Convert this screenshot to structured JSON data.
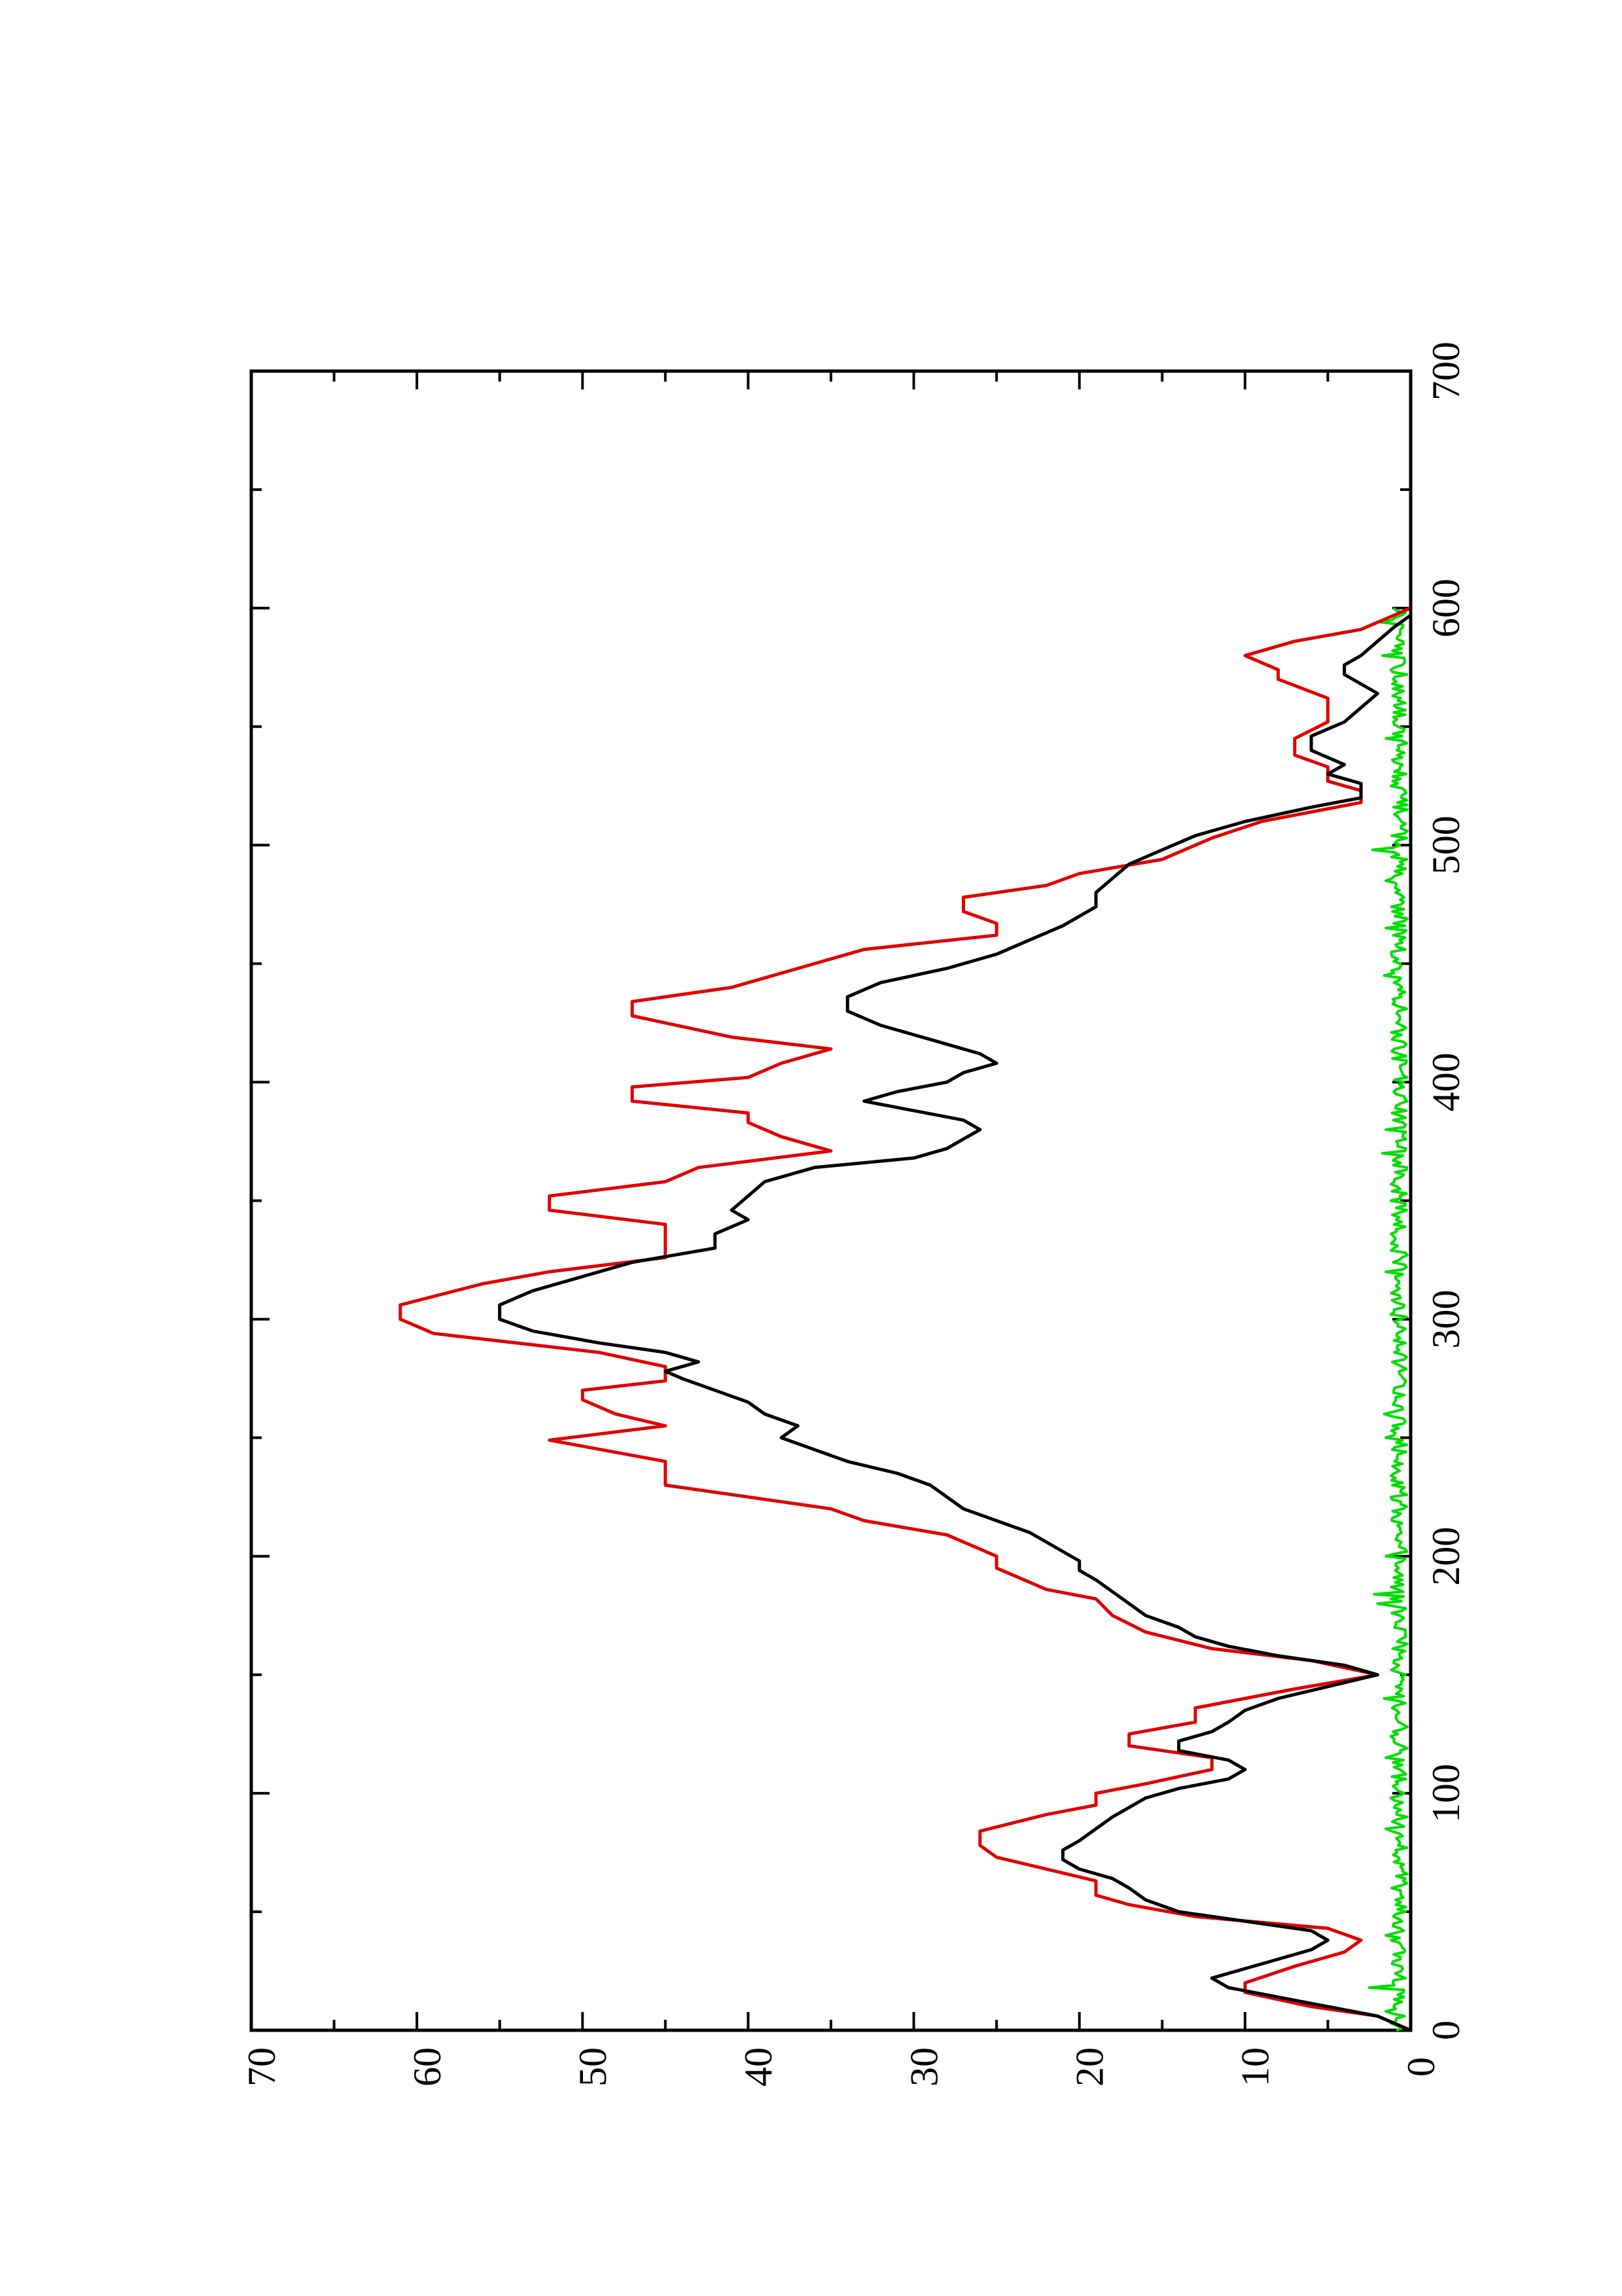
{
  "chart_data": {
    "type": "line",
    "title": "",
    "xlabel": "",
    "ylabel": "",
    "orientation": "rotated 90 degrees counter-clockwise (portrait page)",
    "xlim": [
      0,
      700
    ],
    "ylim": [
      0,
      70
    ],
    "x_ticks": [
      0,
      100,
      200,
      300,
      400,
      500,
      600,
      700
    ],
    "x_minor_ticks": [
      50,
      150,
      250,
      350,
      450,
      550,
      650
    ],
    "y_ticks": [
      0,
      10,
      20,
      30,
      40,
      50,
      60,
      70
    ],
    "y_minor_ticks": [
      5,
      15,
      25,
      35,
      45,
      55,
      65
    ],
    "grid": false,
    "legend": "none",
    "series": [
      {
        "color": "#e00000",
        "step": true,
        "points": [
          [
            0,
            0
          ],
          [
            6,
            2
          ],
          [
            10,
            6
          ],
          [
            16,
            10
          ],
          [
            20,
            10
          ],
          [
            27,
            7
          ],
          [
            33,
            4
          ],
          [
            38,
            3
          ],
          [
            43,
            5
          ],
          [
            48,
            13
          ],
          [
            53,
            17
          ],
          [
            57,
            19
          ],
          [
            63,
            19
          ],
          [
            68,
            22
          ],
          [
            73,
            25
          ],
          [
            78,
            26
          ],
          [
            84,
            26
          ],
          [
            91,
            22
          ],
          [
            95,
            19
          ],
          [
            100,
            19
          ],
          [
            104,
            16
          ],
          [
            110,
            12
          ],
          [
            115,
            12
          ],
          [
            120,
            17
          ],
          [
            125,
            17
          ],
          [
            130,
            13
          ],
          [
            136,
            13
          ],
          [
            144,
            7
          ],
          [
            150,
            2
          ],
          [
            156,
            6
          ],
          [
            161,
            12
          ],
          [
            168,
            16
          ],
          [
            175,
            18
          ],
          [
            182,
            19
          ],
          [
            186,
            22
          ],
          [
            192,
            24
          ],
          [
            195,
            25
          ],
          [
            200,
            25
          ],
          [
            209,
            28
          ],
          [
            215,
            33
          ],
          [
            220,
            35
          ],
          [
            230,
            45
          ],
          [
            240,
            45
          ],
          [
            249,
            52
          ],
          [
            255,
            45
          ],
          [
            260,
            48
          ],
          [
            266,
            50
          ],
          [
            270,
            50
          ],
          [
            274,
            45
          ],
          [
            280,
            45
          ],
          [
            286,
            49
          ],
          [
            294,
            59
          ],
          [
            300,
            61
          ],
          [
            306,
            61
          ],
          [
            315,
            56
          ],
          [
            320,
            52
          ],
          [
            326,
            45
          ],
          [
            340,
            45
          ],
          [
            346,
            52
          ],
          [
            352,
            52
          ],
          [
            358,
            45
          ],
          [
            364,
            43
          ],
          [
            371,
            35
          ],
          [
            377,
            38
          ],
          [
            383,
            40
          ],
          [
            387,
            40
          ],
          [
            392,
            47
          ],
          [
            398,
            47
          ],
          [
            402,
            40
          ],
          [
            408,
            38
          ],
          [
            414,
            35
          ],
          [
            419,
            41
          ],
          [
            428,
            47
          ],
          [
            434,
            47
          ],
          [
            440,
            41
          ],
          [
            448,
            37
          ],
          [
            456,
            33
          ],
          [
            462,
            25
          ],
          [
            467,
            25
          ],
          [
            472,
            27
          ],
          [
            478,
            27
          ],
          [
            483,
            22
          ],
          [
            488,
            20
          ],
          [
            494,
            15
          ],
          [
            503,
            12
          ],
          [
            510,
            9
          ],
          [
            518,
            3
          ],
          [
            523,
            3
          ],
          [
            527,
            5
          ],
          [
            533,
            5
          ],
          [
            538,
            7
          ],
          [
            545,
            7
          ],
          [
            552,
            5
          ],
          [
            562,
            5
          ],
          [
            570,
            8
          ],
          [
            574,
            8
          ],
          [
            580,
            10
          ],
          [
            586,
            7
          ],
          [
            591,
            3
          ],
          [
            597,
            1
          ],
          [
            600,
            0
          ]
        ]
      },
      {
        "color": "#000000",
        "step": false,
        "points": [
          [
            0,
            0
          ],
          [
            6,
            2
          ],
          [
            10,
            5
          ],
          [
            14,
            8
          ],
          [
            18,
            11
          ],
          [
            22,
            12
          ],
          [
            26,
            10
          ],
          [
            30,
            8
          ],
          [
            34,
            6
          ],
          [
            38,
            5
          ],
          [
            42,
            6
          ],
          [
            46,
            10
          ],
          [
            50,
            14
          ],
          [
            55,
            16
          ],
          [
            60,
            17
          ],
          [
            64,
            18
          ],
          [
            68,
            20
          ],
          [
            72,
            21
          ],
          [
            76,
            21
          ],
          [
            80,
            20
          ],
          [
            85,
            19
          ],
          [
            90,
            18
          ],
          [
            94,
            17
          ],
          [
            98,
            16
          ],
          [
            102,
            14
          ],
          [
            106,
            11
          ],
          [
            110,
            10
          ],
          [
            114,
            11
          ],
          [
            118,
            14
          ],
          [
            122,
            14
          ],
          [
            126,
            12
          ],
          [
            130,
            11
          ],
          [
            135,
            10
          ],
          [
            140,
            8
          ],
          [
            145,
            5
          ],
          [
            150,
            2
          ],
          [
            154,
            4
          ],
          [
            158,
            8
          ],
          [
            162,
            11
          ],
          [
            166,
            13
          ],
          [
            170,
            14
          ],
          [
            175,
            16
          ],
          [
            180,
            17
          ],
          [
            185,
            18
          ],
          [
            190,
            19
          ],
          [
            194,
            20
          ],
          [
            198,
            20
          ],
          [
            202,
            21
          ],
          [
            206,
            22
          ],
          [
            210,
            23
          ],
          [
            215,
            25
          ],
          [
            220,
            27
          ],
          [
            225,
            28
          ],
          [
            230,
            29
          ],
          [
            235,
            31
          ],
          [
            240,
            34
          ],
          [
            245,
            36
          ],
          [
            250,
            38
          ],
          [
            255,
            37
          ],
          [
            260,
            39
          ],
          [
            265,
            40
          ],
          [
            270,
            42
          ],
          [
            275,
            44
          ],
          [
            278,
            45
          ],
          [
            282,
            43
          ],
          [
            286,
            45
          ],
          [
            290,
            49
          ],
          [
            295,
            53
          ],
          [
            300,
            55
          ],
          [
            306,
            55
          ],
          [
            312,
            53
          ],
          [
            318,
            50
          ],
          [
            324,
            47
          ],
          [
            330,
            42
          ],
          [
            336,
            42
          ],
          [
            342,
            40
          ],
          [
            346,
            41
          ],
          [
            352,
            40
          ],
          [
            358,
            39
          ],
          [
            364,
            36
          ],
          [
            368,
            30
          ],
          [
            372,
            28
          ],
          [
            376,
            27
          ],
          [
            380,
            26
          ],
          [
            384,
            27
          ],
          [
            388,
            30
          ],
          [
            392,
            33
          ],
          [
            396,
            31
          ],
          [
            400,
            28
          ],
          [
            404,
            27
          ],
          [
            408,
            25
          ],
          [
            412,
            26
          ],
          [
            418,
            29
          ],
          [
            424,
            32
          ],
          [
            430,
            34
          ],
          [
            436,
            34
          ],
          [
            442,
            32
          ],
          [
            448,
            28
          ],
          [
            454,
            25
          ],
          [
            460,
            23
          ],
          [
            466,
            21
          ],
          [
            470,
            20
          ],
          [
            474,
            19
          ],
          [
            480,
            19
          ],
          [
            486,
            18
          ],
          [
            492,
            17
          ],
          [
            498,
            15
          ],
          [
            504,
            13
          ],
          [
            510,
            10
          ],
          [
            516,
            6
          ],
          [
            520,
            3
          ],
          [
            526,
            3
          ],
          [
            530,
            5
          ],
          [
            534,
            4
          ],
          [
            540,
            6
          ],
          [
            546,
            6
          ],
          [
            552,
            4
          ],
          [
            558,
            3
          ],
          [
            564,
            2
          ],
          [
            568,
            3
          ],
          [
            572,
            4
          ],
          [
            576,
            4
          ],
          [
            580,
            3
          ],
          [
            586,
            2
          ],
          [
            592,
            1
          ],
          [
            597,
            0
          ],
          [
            600,
            0
          ]
        ]
      },
      {
        "color": "#00dd00",
        "step": false,
        "noise": true,
        "x_range": [
          0,
          600
        ],
        "mean": 0.7,
        "amplitude": 1.0,
        "spikes": [
          [
            8,
            1.5
          ],
          [
            18,
            2.5
          ],
          [
            40,
            1.5
          ],
          [
            85,
            1.5
          ],
          [
            115,
            1.5
          ],
          [
            140,
            1.6
          ],
          [
            180,
            2.0
          ],
          [
            184,
            2.2
          ],
          [
            200,
            1.5
          ],
          [
            250,
            1.5
          ],
          [
            260,
            1.6
          ],
          [
            320,
            1.5
          ],
          [
            370,
            1.7
          ],
          [
            380,
            1.5
          ],
          [
            445,
            1.6
          ],
          [
            465,
            1.5
          ],
          [
            485,
            1.5
          ],
          [
            498,
            2.3
          ],
          [
            545,
            1.5
          ],
          [
            580,
            1.7
          ],
          [
            594,
            1.8
          ]
        ]
      }
    ]
  }
}
